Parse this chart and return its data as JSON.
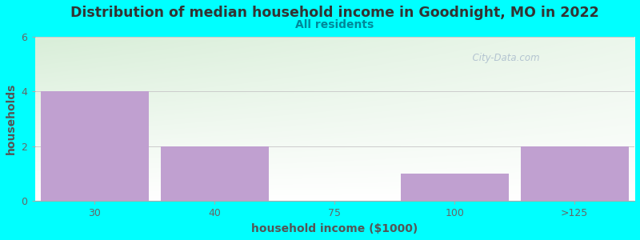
{
  "title": "Distribution of median household income in Goodnight, MO in 2022",
  "subtitle": "All residents",
  "xlabel": "household income ($1000)",
  "ylabel": "households",
  "categories": [
    "30",
    "40",
    "75",
    "100",
    ">125"
  ],
  "values": [
    4,
    2,
    0,
    1,
    2
  ],
  "ylim": [
    0,
    6
  ],
  "yticks": [
    0,
    2,
    4,
    6
  ],
  "bar_color": "#C0A0D0",
  "background_color": "#00FFFF",
  "plot_bg_color_topleft": "#D8EED8",
  "plot_bg_color_topright": "#E8F5F0",
  "plot_bg_color_bottom": "#F0FAF0",
  "title_color": "#333333",
  "subtitle_color": "#008899",
  "axis_label_color": "#555555",
  "tick_color": "#666666",
  "title_fontsize": 12.5,
  "subtitle_fontsize": 10,
  "label_fontsize": 10,
  "tick_fontsize": 9,
  "watermark_text": "  City-Data.com",
  "watermark_color": "#AABBCC"
}
